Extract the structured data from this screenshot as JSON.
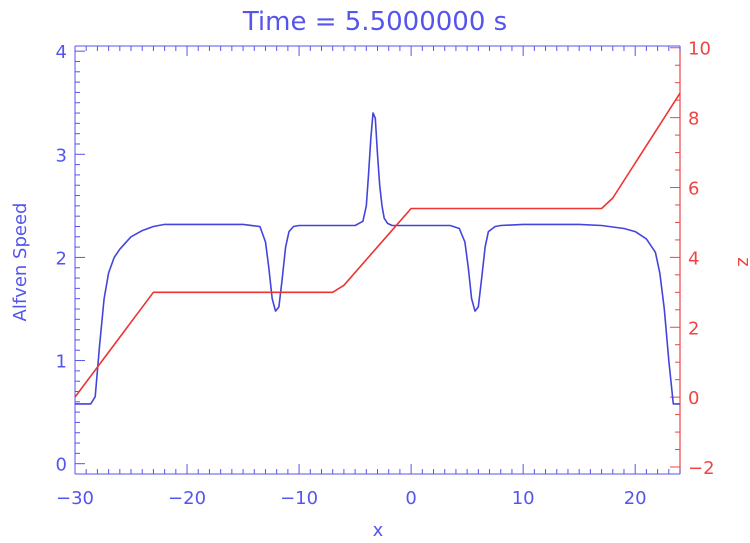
{
  "chart_data": {
    "type": "line",
    "title": "Time = 5.5000000 s",
    "xlabel": "x",
    "ylabel_left": "Alfven Speed",
    "ylabel_right": "z",
    "xlim": [
      -30,
      24
    ],
    "ylim_left": [
      -0.1,
      4.05
    ],
    "ylim_right": [
      -2.2,
      10.05
    ],
    "x_ticks": [
      -30,
      -20,
      -10,
      0,
      10,
      20
    ],
    "x_tick_labels": [
      "−30",
      "−20",
      "−10",
      "0",
      "10",
      "20"
    ],
    "y_left_ticks": [
      0,
      1,
      2,
      3,
      4
    ],
    "y_left_tick_labels": [
      "0",
      "1",
      "2",
      "3",
      "4"
    ],
    "y_right_ticks": [
      -2,
      0,
      2,
      4,
      6,
      8,
      10
    ],
    "y_right_tick_labels": [
      "−2",
      "0",
      "2",
      "4",
      "6",
      "8",
      "10"
    ],
    "grid": false,
    "colors": {
      "left_axis": "#5555ee",
      "right_axis": "#ee4444"
    },
    "series": [
      {
        "axis": "left",
        "color": "#4444dd",
        "x": [
          -30,
          -28.6,
          -28.2,
          -27.8,
          -27.4,
          -27,
          -26.5,
          -26,
          -25,
          -24,
          -23,
          -22,
          -20,
          -15,
          -13.5,
          -13,
          -12.7,
          -12.4,
          -12.1,
          -11.8,
          -11.5,
          -11.2,
          -10.9,
          -10.5,
          -10,
          -7,
          -5,
          -4.3,
          -4,
          -3.8,
          -3.6,
          -3.4,
          -3.2,
          -3.0,
          -2.8,
          -2.6,
          -2.4,
          -2.1,
          -1.7,
          0,
          3.5,
          4.3,
          4.8,
          5.1,
          5.4,
          5.7,
          6.0,
          6.3,
          6.6,
          6.9,
          7.5,
          8,
          10,
          15,
          17,
          19,
          20,
          21,
          21.8,
          22.2,
          22.6,
          23.0,
          23.4,
          24
        ],
        "y": [
          0.58,
          0.58,
          0.65,
          1.15,
          1.6,
          1.85,
          2.0,
          2.08,
          2.2,
          2.26,
          2.3,
          2.32,
          2.32,
          2.32,
          2.3,
          2.15,
          1.9,
          1.6,
          1.48,
          1.52,
          1.8,
          2.1,
          2.25,
          2.3,
          2.31,
          2.31,
          2.31,
          2.35,
          2.5,
          2.8,
          3.15,
          3.4,
          3.35,
          3.0,
          2.7,
          2.5,
          2.38,
          2.33,
          2.31,
          2.31,
          2.31,
          2.28,
          2.15,
          1.9,
          1.6,
          1.48,
          1.52,
          1.8,
          2.1,
          2.25,
          2.3,
          2.31,
          2.32,
          2.32,
          2.31,
          2.28,
          2.25,
          2.18,
          2.05,
          1.85,
          1.5,
          1.0,
          0.58,
          0.58
        ]
      },
      {
        "axis": "right",
        "color": "#ee3333",
        "x": [
          -30,
          -23,
          -7,
          -6,
          0,
          17,
          18,
          24
        ],
        "y": [
          0.0,
          3.0,
          3.0,
          3.2,
          5.4,
          5.4,
          5.7,
          8.7
        ]
      }
    ]
  }
}
